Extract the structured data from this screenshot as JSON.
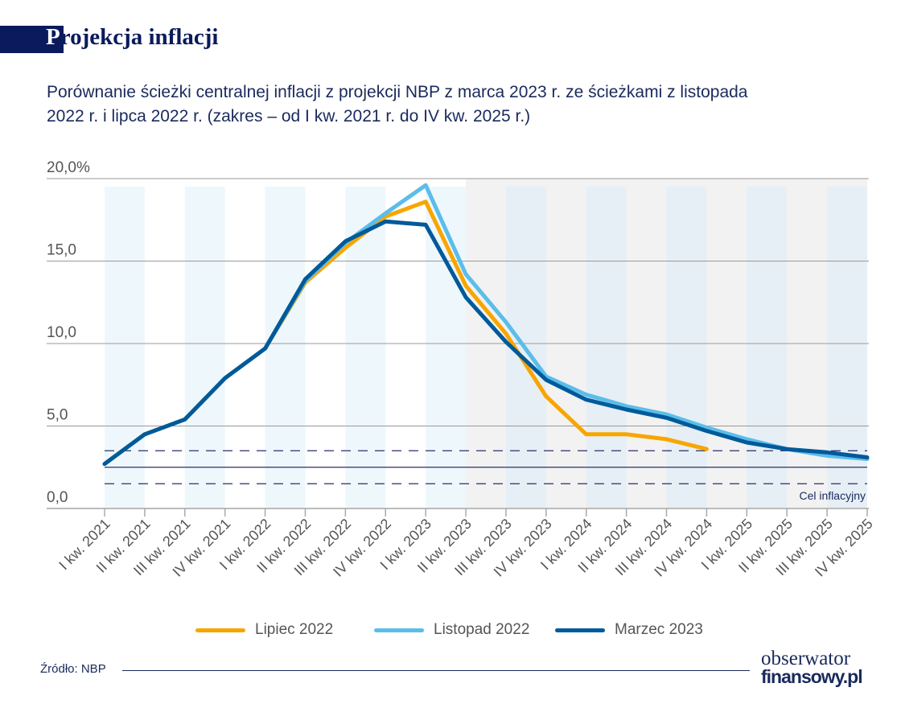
{
  "header": {
    "title_first_letter": "P",
    "title_rest": "rojekcja inflacji",
    "subtitle": "Porównanie ścieżki centralnej inflacji z projekcji NBP z marca 2023 r. ze ścieżkami z listopada 2022 r. i lipca 2022 r. (zakres – od I kw. 2021 r. do IV kw. 2025 r.)"
  },
  "chart_data": {
    "type": "line",
    "ylim": [
      0,
      20
    ],
    "yticks": [
      {
        "value": 0,
        "label": "0,0"
      },
      {
        "value": 5,
        "label": "5,0"
      },
      {
        "value": 10,
        "label": "10,0"
      },
      {
        "value": 15,
        "label": "15,0"
      },
      {
        "value": 20,
        "label": "20,0%"
      }
    ],
    "categories": [
      "I kw. 2021",
      "II kw. 2021",
      "III kw. 2021",
      "IV kw. 2021",
      "I kw. 2022",
      "II kw. 2022",
      "III kw. 2022",
      "IV kw. 2022",
      "I kw. 2023",
      "II kw. 2023",
      "III kw. 2023",
      "IV kw. 2023",
      "I kw. 2024",
      "II kw. 2024",
      "III kw. 2024",
      "IV kw. 2024",
      "I kw. 2025",
      "II kw. 2025",
      "III kw. 2025",
      "IV kw. 2025"
    ],
    "projection_shading_from": "II kw. 2023",
    "target": {
      "value": 2.5,
      "band": [
        1.5,
        3.5
      ],
      "label": "Cel inflacyjny"
    },
    "grid": true,
    "legend_position": "bottom",
    "series": [
      {
        "name": "Lipiec 2022",
        "color": "#f7a600",
        "values": [
          2.7,
          4.5,
          5.4,
          7.9,
          9.7,
          13.7,
          15.8,
          17.7,
          18.6,
          13.5,
          10.6,
          6.8,
          4.5,
          4.5,
          4.2,
          3.6,
          null,
          null,
          null,
          null
        ]
      },
      {
        "name": "Listopad 2022",
        "color": "#5bbdea",
        "values": [
          2.7,
          4.5,
          5.4,
          7.9,
          9.7,
          13.8,
          16.1,
          17.9,
          19.6,
          14.2,
          11.3,
          8.0,
          6.9,
          6.2,
          5.7,
          4.9,
          4.2,
          3.6,
          3.2,
          3.0
        ]
      },
      {
        "name": "Marzec 2023",
        "color": "#005a9a",
        "values": [
          2.7,
          4.5,
          5.4,
          7.9,
          9.7,
          13.9,
          16.2,
          17.4,
          17.2,
          12.8,
          10.1,
          7.8,
          6.6,
          6.0,
          5.5,
          4.7,
          4.0,
          3.6,
          3.4,
          3.1
        ]
      }
    ]
  },
  "footer": {
    "source": "Źródło: NBP",
    "logo_line1": "obserwator",
    "logo_line2": "finansowy.pl"
  }
}
